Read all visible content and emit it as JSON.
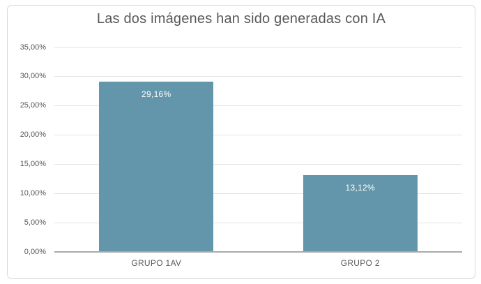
{
  "chart_data": {
    "type": "bar",
    "title": "Las dos imágenes han sido generadas con IA",
    "categories": [
      "GRUPO 1AV",
      "GRUPO 2"
    ],
    "values": [
      29.16,
      13.12
    ],
    "data_labels": [
      "29,16%",
      "13,12%"
    ],
    "y_tick_labels": [
      "0,00%",
      "5,00%",
      "10,00%",
      "15,00%",
      "20,00%",
      "25,00%",
      "30,00%",
      "35,00%"
    ],
    "ylim": [
      0,
      35
    ],
    "y_step": 5,
    "xlabel": "",
    "ylabel": "",
    "grid": true,
    "legend": "none",
    "data_label_position": "inside-end",
    "colors": {
      "bar_fill": "#6396AA",
      "data_label_text": "#ffffff",
      "title_text": "#595959",
      "axis_text": "#595959",
      "gridline": "#e3e3e3",
      "axis_line": "#a9a9a9",
      "chart_border": "#d8d8d8",
      "background": "#ffffff"
    }
  }
}
